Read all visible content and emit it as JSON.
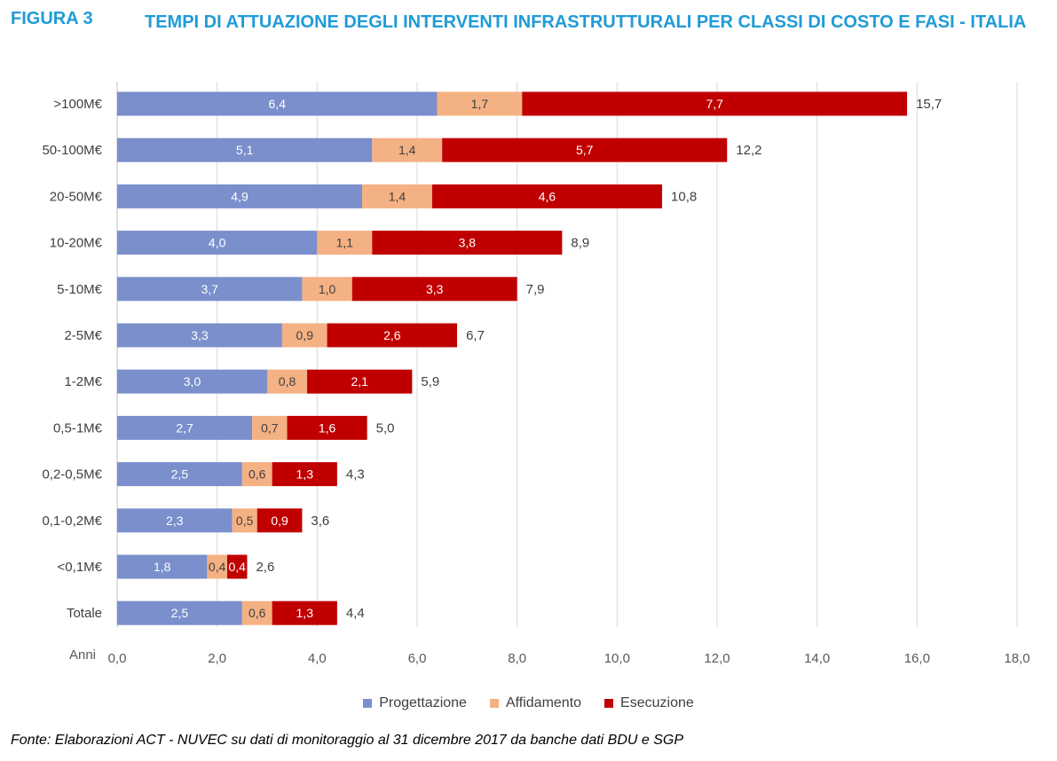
{
  "figure": {
    "label": "FIGURA 3",
    "title": "TEMPI DI ATTUAZIONE DEGLI INTERVENTI INFRASTRUTTURALI PER CLASSI DI COSTO E FASI - ITALIA"
  },
  "source_note": "Fonte: Elaborazioni ACT - NUVEC su dati di monitoraggio al 31 dicembre 2017 da banche dati BDU e SGP",
  "colors": {
    "progettazione": "#7a8fcc",
    "affidamento": "#f4b183",
    "esecuzione": "#c00000",
    "grid": "#d9d9d9"
  },
  "chart_data": {
    "type": "bar",
    "orientation": "horizontal",
    "stacked": true,
    "categories": [
      ">100M€",
      "50-100M€",
      "20-50M€",
      "10-20M€",
      "5-10M€",
      "2-5M€",
      "1-2M€",
      "0,5-1M€",
      "0,2-0,5M€",
      "0,1-0,2M€",
      "<0,1M€",
      "Totale"
    ],
    "series": [
      {
        "name": "Progettazione",
        "values": [
          6.4,
          5.1,
          4.9,
          4.0,
          3.7,
          3.3,
          3.0,
          2.7,
          2.5,
          2.3,
          1.8,
          2.5
        ]
      },
      {
        "name": "Affidamento",
        "values": [
          1.7,
          1.4,
          1.4,
          1.1,
          1.0,
          0.9,
          0.8,
          0.7,
          0.6,
          0.5,
          0.4,
          0.6
        ]
      },
      {
        "name": "Esecuzione",
        "values": [
          7.7,
          5.7,
          4.6,
          3.8,
          3.3,
          2.6,
          2.1,
          1.6,
          1.3,
          0.9,
          0.4,
          1.3
        ]
      }
    ],
    "totals": [
      15.7,
      12.2,
      10.8,
      8.9,
      7.9,
      6.7,
      5.9,
      5.0,
      4.3,
      3.6,
      2.6,
      4.4
    ],
    "xlabel": "Anni",
    "xlim": [
      0,
      18
    ],
    "xticks": [
      0,
      2,
      4,
      6,
      8,
      10,
      12,
      14,
      16,
      18
    ],
    "decimal_separator": ",",
    "grid": "vertical",
    "legend_position": "bottom"
  }
}
